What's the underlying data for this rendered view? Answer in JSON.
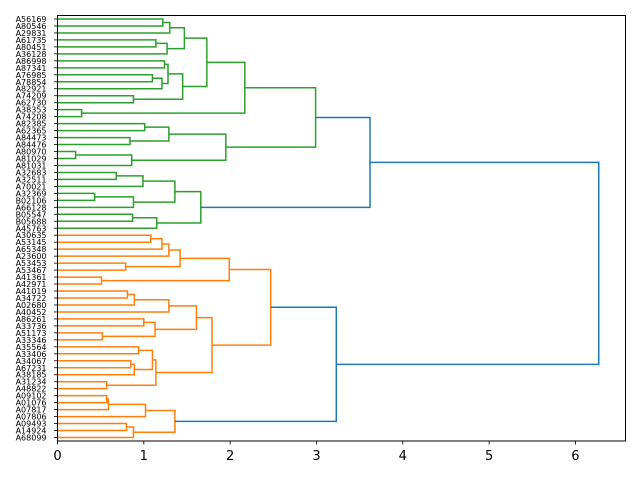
{
  "chart_data": {
    "type": "dendrogram",
    "orientation": "left",
    "title": "",
    "xlabel": "",
    "ylabel": "",
    "xlim": [
      0,
      6.58
    ],
    "xticks": [
      0,
      1,
      2,
      3,
      4,
      5,
      6
    ],
    "grid": false,
    "colors": {
      "cluster_1": "#2ca02c",
      "cluster_2": "#ff7f0e",
      "above_threshold": "#1f77b4"
    },
    "leaves": [
      "A56169",
      "A80546",
      "A29831",
      "A61735",
      "A80451",
      "A36128",
      "A86998",
      "A87341",
      "A76985",
      "A78854",
      "A82921",
      "A74209",
      "A62730",
      "A38353",
      "A74208",
      "A82385",
      "A62365",
      "A84473",
      "A84476",
      "A80970",
      "A81029",
      "A81031",
      "A32683",
      "A32511",
      "A70021",
      "A32369",
      "B02106",
      "A66128",
      "B05547",
      "B05688",
      "A45763",
      "A30635",
      "A53145",
      "A65348",
      "A23600",
      "A53453",
      "A53467",
      "A41361",
      "A42971",
      "A41019",
      "A34722",
      "A02680",
      "A40452",
      "A86261",
      "A33736",
      "A51173",
      "A33346",
      "A35564",
      "A33406",
      "A34067",
      "A67231",
      "A38185",
      "A31234",
      "A48822",
      "A09102",
      "A01076",
      "A07817",
      "A07806",
      "A09493",
      "A14924",
      "A68099"
    ],
    "tree": {
      "h": 6.27,
      "c": [
        {
          "h": 3.62,
          "color": "cluster_1",
          "c": [
            {
              "h": 2.99,
              "c": [
                {
                  "h": 2.17,
                  "c": [
                    {
                      "h": 1.73,
                      "c": [
                        {
                          "h": 1.47,
                          "c": [
                            {
                              "h": 1.3,
                              "c": [
                                {
                                  "h": 1.22,
                                  "c": [
                                    0,
                                    1
                                  ]
                                },
                                2
                              ]
                            },
                            {
                              "h": 1.27,
                              "c": [
                                {
                                  "h": 1.14,
                                  "c": [
                                    3,
                                    4
                                  ]
                                },
                                5
                              ]
                            }
                          ]
                        },
                        {
                          "h": 1.45,
                          "c": [
                            {
                              "h": 1.28,
                              "c": [
                                {
                                  "h": 1.24,
                                  "c": [
                                    6,
                                    7
                                  ]
                                },
                                {
                                  "h": 1.21,
                                  "c": [
                                    {
                                      "h": 1.1,
                                      "c": [
                                        8,
                                        9
                                      ]
                                    },
                                    10
                                  ]
                                }
                              ]
                            },
                            {
                              "h": 0.88,
                              "c": [
                                11,
                                12
                              ]
                            }
                          ]
                        }
                      ]
                    },
                    {
                      "h": 0.28,
                      "c": [
                        13,
                        14
                      ]
                    }
                  ]
                },
                {
                  "h": 1.95,
                  "c": [
                    {
                      "h": 1.29,
                      "c": [
                        {
                          "h": 1.01,
                          "c": [
                            15,
                            16
                          ]
                        },
                        {
                          "h": 0.84,
                          "c": [
                            17,
                            18
                          ]
                        }
                      ]
                    },
                    {
                      "h": 0.86,
                      "c": [
                        {
                          "h": 0.21,
                          "c": [
                            19,
                            20
                          ]
                        },
                        21
                      ]
                    }
                  ]
                }
              ]
            },
            {
              "h": 1.66,
              "c": [
                {
                  "h": 1.36,
                  "c": [
                    {
                      "h": 0.99,
                      "c": [
                        {
                          "h": 0.68,
                          "c": [
                            22,
                            23
                          ]
                        },
                        24
                      ]
                    },
                    {
                      "h": 0.88,
                      "c": [
                        {
                          "h": 0.43,
                          "c": [
                            25,
                            26
                          ]
                        },
                        27
                      ]
                    }
                  ]
                },
                {
                  "h": 1.15,
                  "c": [
                    {
                      "h": 0.87,
                      "c": [
                        28,
                        29
                      ]
                    },
                    30
                  ]
                }
              ]
            }
          ]
        },
        {
          "h": 3.23,
          "color": "cluster_2",
          "c": [
            {
              "h": 2.47,
              "c": [
                {
                  "h": 1.99,
                  "c": [
                    {
                      "h": 1.42,
                      "c": [
                        {
                          "h": 1.29,
                          "c": [
                            {
                              "h": 1.21,
                              "c": [
                                {
                                  "h": 1.08,
                                  "c": [
                                    31,
                                    32
                                  ]
                                },
                                33
                              ]
                            },
                            34
                          ]
                        },
                        {
                          "h": 0.79,
                          "c": [
                            35,
                            36
                          ]
                        }
                      ]
                    },
                    {
                      "h": 0.51,
                      "c": [
                        37,
                        38
                      ]
                    }
                  ]
                },
                {
                  "h": 1.79,
                  "c": [
                    {
                      "h": 1.61,
                      "c": [
                        {
                          "h": 1.29,
                          "c": [
                            {
                              "h": 0.89,
                              "c": [
                                {
                                  "h": 0.81,
                                  "c": [
                                    39,
                                    40
                                  ]
                                },
                                41
                              ]
                            },
                            42
                          ]
                        },
                        {
                          "h": 1.13,
                          "c": [
                            {
                              "h": 1.0,
                              "c": [
                                43,
                                44
                              ]
                            },
                            {
                              "h": 0.52,
                              "c": [
                                45,
                                46
                              ]
                            }
                          ]
                        }
                      ]
                    },
                    {
                      "h": 1.14,
                      "c": [
                        {
                          "h": 1.1,
                          "c": [
                            {
                              "h": 0.94,
                              "c": [
                                47,
                                48
                              ]
                            },
                            {
                              "h": 0.89,
                              "c": [
                                {
                                  "h": 0.85,
                                  "c": [
                                    49,
                                    50
                                  ]
                                },
                                51
                              ]
                            }
                          ]
                        },
                        {
                          "h": 0.57,
                          "c": [
                            52,
                            53
                          ]
                        }
                      ]
                    }
                  ]
                }
              ]
            },
            {
              "h": 1.36,
              "c": [
                {
                  "h": 1.02,
                  "c": [
                    {
                      "h": 0.59,
                      "c": [
                        {
                          "h": 0.57,
                          "c": [
                            54,
                            55
                          ]
                        },
                        56
                      ]
                    },
                    57
                  ]
                },
                {
                  "h": 0.88,
                  "c": [
                    {
                      "h": 0.8,
                      "c": [
                        58,
                        59
                      ]
                    },
                    60
                  ]
                }
              ]
            }
          ]
        }
      ]
    }
  }
}
